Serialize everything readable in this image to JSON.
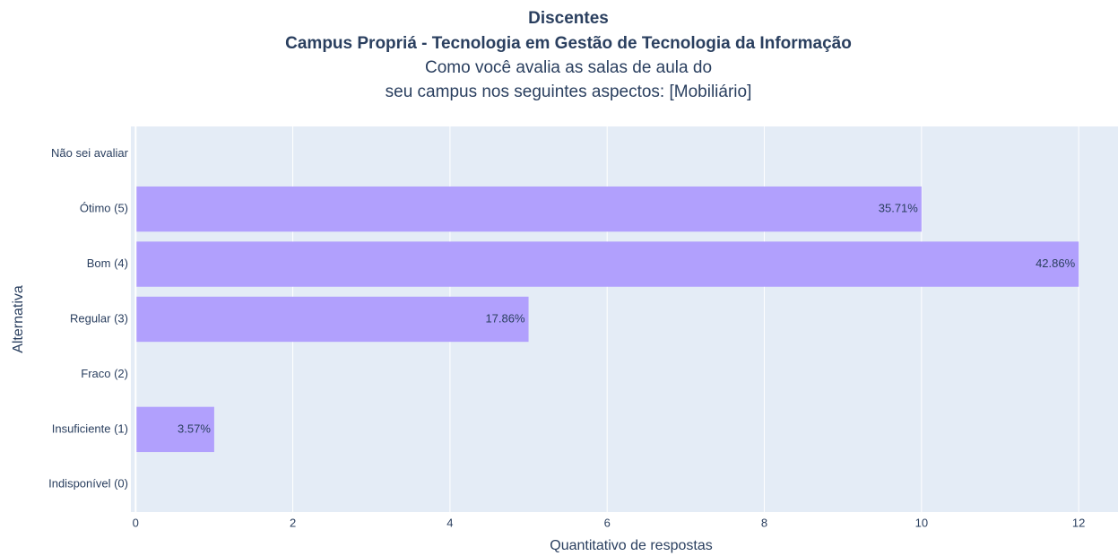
{
  "chart_data": {
    "type": "bar",
    "orientation": "horizontal",
    "title": [
      "Discentes",
      "Campus Propriá - Tecnologia em Gestão de Tecnologia da Informação"
    ],
    "subtitle": [
      "Como você avalia as salas de aula do",
      "seu campus nos seguintes aspectos: [Mobiliário]"
    ],
    "xlabel": "Quantitativo de respostas",
    "ylabel": "Alternativa",
    "categories": [
      "Não sei avaliar",
      "Ótimo (5)",
      "Bom (4)",
      "Regular (3)",
      "Fraco (2)",
      "Insuficiente (1)",
      "Indisponível (0)"
    ],
    "values": [
      0,
      10,
      12,
      5,
      0,
      1,
      0
    ],
    "value_labels": [
      null,
      "35.71%",
      "42.86%",
      "17.86%",
      null,
      "3.57%",
      null
    ],
    "color": "#b1a0fd",
    "xlim": [
      -0.06,
      12.5
    ],
    "xticks": [
      0,
      2,
      4,
      6,
      8,
      10,
      12
    ],
    "grid": true
  }
}
